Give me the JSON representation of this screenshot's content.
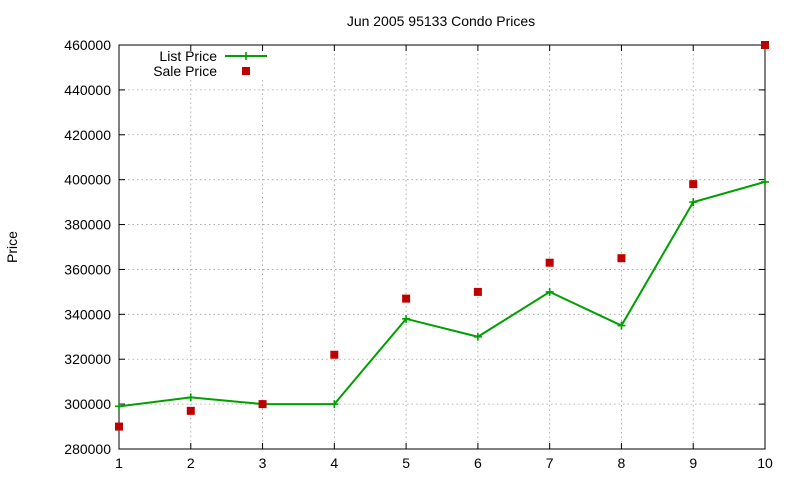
{
  "chart_data": {
    "type": "line",
    "title": "Jun 2005 95133 Condo Prices",
    "xlabel": "",
    "ylabel": "Price",
    "xlim": [
      1,
      10
    ],
    "ylim": [
      280000,
      460000
    ],
    "x": [
      1,
      2,
      3,
      4,
      5,
      6,
      7,
      8,
      9,
      10
    ],
    "x_ticks": [
      "1",
      "2",
      "3",
      "4",
      "5",
      "6",
      "7",
      "8",
      "9",
      "10"
    ],
    "y_ticks": [
      280000,
      300000,
      320000,
      340000,
      360000,
      380000,
      400000,
      420000,
      440000,
      460000
    ],
    "grid": true,
    "legend_position": "top-left",
    "series": [
      {
        "name": "List Price",
        "style": "lines+points",
        "color": "#00a000",
        "marker": "plus",
        "values": [
          299000,
          303000,
          300000,
          300000,
          338000,
          330000,
          350000,
          335000,
          390000,
          399000
        ]
      },
      {
        "name": "Sale Price",
        "style": "points",
        "color": "#c00000",
        "marker": "square",
        "values": [
          290000,
          297000,
          300000,
          322000,
          347000,
          350000,
          363000,
          365000,
          398000,
          460000
        ]
      }
    ]
  }
}
